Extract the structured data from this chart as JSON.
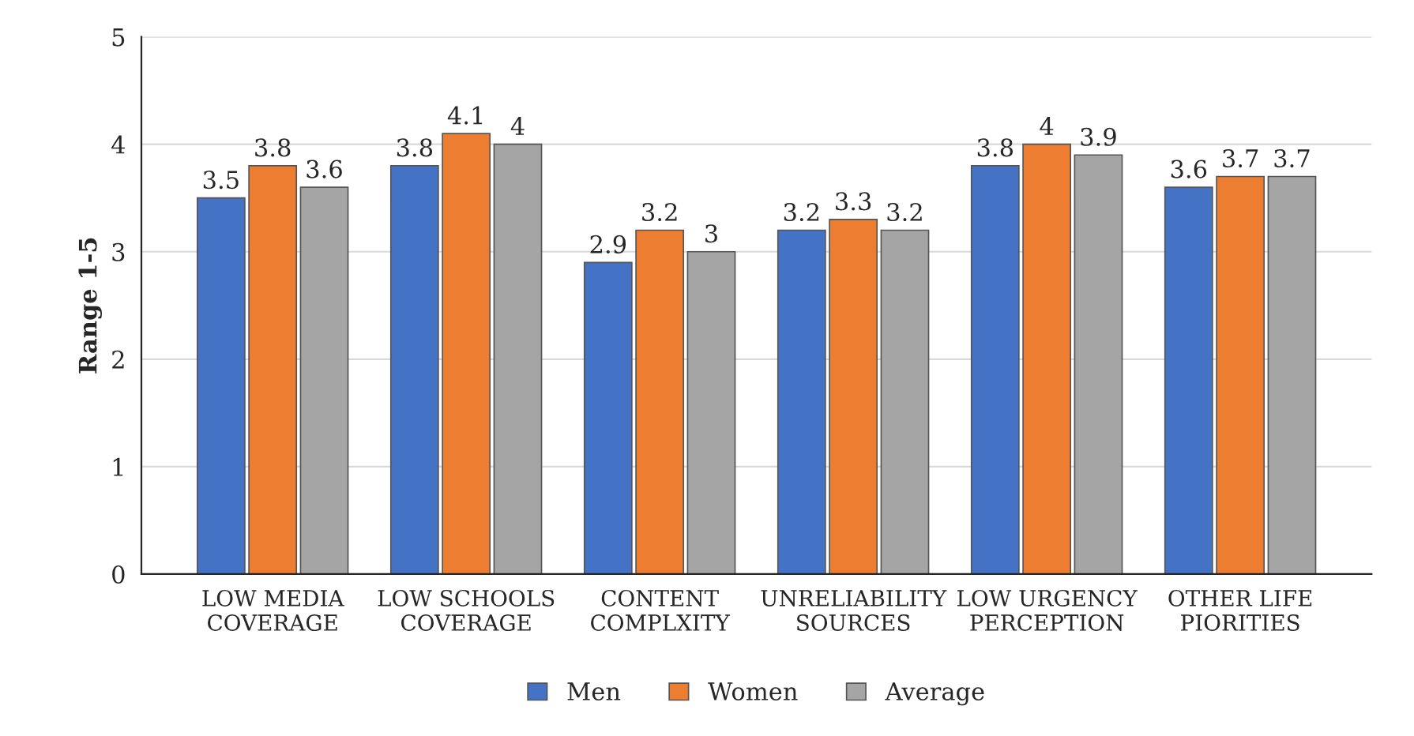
{
  "chart_data": {
    "type": "bar",
    "ylabel": "Range 1-5",
    "categories": [
      "LOW MEDIA\nCOVERAGE",
      "LOW SCHOOLS\nCOVERAGE",
      "CONTENT\nCOMPLXITY",
      "UNRELIABILITY\nSOURCES",
      "LOW URGENCY\nPERCEPTION",
      "OTHER LIFE\nPIORITIES"
    ],
    "series": [
      {
        "name": "Men",
        "color": "#4472c4",
        "values": [
          3.5,
          3.8,
          2.9,
          3.2,
          3.8,
          3.6
        ]
      },
      {
        "name": "Women",
        "color": "#ed7d31",
        "values": [
          3.8,
          4.1,
          3.2,
          3.3,
          4,
          3.7
        ]
      },
      {
        "name": "Average",
        "color": "#a5a5a5",
        "values": [
          3.6,
          4,
          3,
          3.2,
          3.9,
          3.7
        ]
      }
    ],
    "ylim": [
      0,
      5
    ],
    "yticks": [
      0,
      1,
      2,
      3,
      4,
      5
    ],
    "grid": "y",
    "legend": "bottom",
    "data_labels": true
  }
}
